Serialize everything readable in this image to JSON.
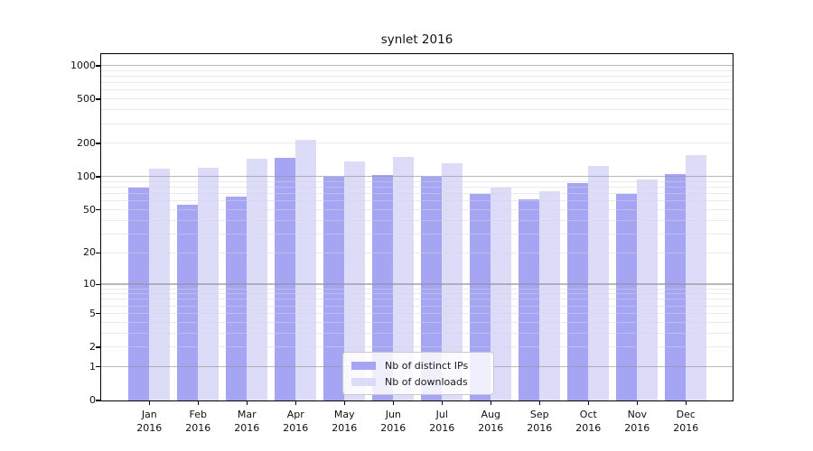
{
  "chart_data": {
    "type": "bar",
    "title": "synlet 2016",
    "categories": [
      "Jan\n2016",
      "Feb\n2016",
      "Mar\n2016",
      "Apr\n2016",
      "May\n2016",
      "Jun\n2016",
      "Jul\n2016",
      "Aug\n2016",
      "Sep\n2016",
      "Oct\n2016",
      "Nov\n2016",
      "Dec\n2016"
    ],
    "series": [
      {
        "name": "Nb of distinct IPs",
        "color": "#a5a5f3",
        "values": [
          80,
          55,
          66,
          147,
          100,
          104,
          100,
          70,
          62,
          87,
          69,
          106
        ]
      },
      {
        "name": "Nb of downloads",
        "color": "#dcdcf8",
        "values": [
          117,
          121,
          146,
          213,
          138,
          150,
          131,
          79,
          73,
          124,
          95,
          155
        ]
      }
    ],
    "yscale": "log-like (y maps to log10(value+1))",
    "ylim": [
      0,
      1270
    ],
    "yticks": [
      1000,
      500,
      200,
      100,
      50,
      20,
      10,
      5,
      2,
      1,
      0
    ],
    "minor_gridline_values": [
      2,
      3,
      4,
      5,
      6,
      7,
      8,
      9,
      20,
      30,
      40,
      50,
      60,
      70,
      80,
      90,
      200,
      300,
      400,
      500,
      600,
      700,
      800,
      900
    ],
    "major_gridline_values": [
      1,
      10,
      100,
      1000
    ],
    "grid": true,
    "legend_position": "lower center",
    "colors": {
      "bar_distinct_ips": "#a5a5f3",
      "bar_downloads": "#dcdcf8",
      "major_grid": "#b9b9bc",
      "minor_grid": "#ececf2",
      "axis": "#000000",
      "text": "#111111",
      "legend_border": "#c9c9c9"
    }
  }
}
